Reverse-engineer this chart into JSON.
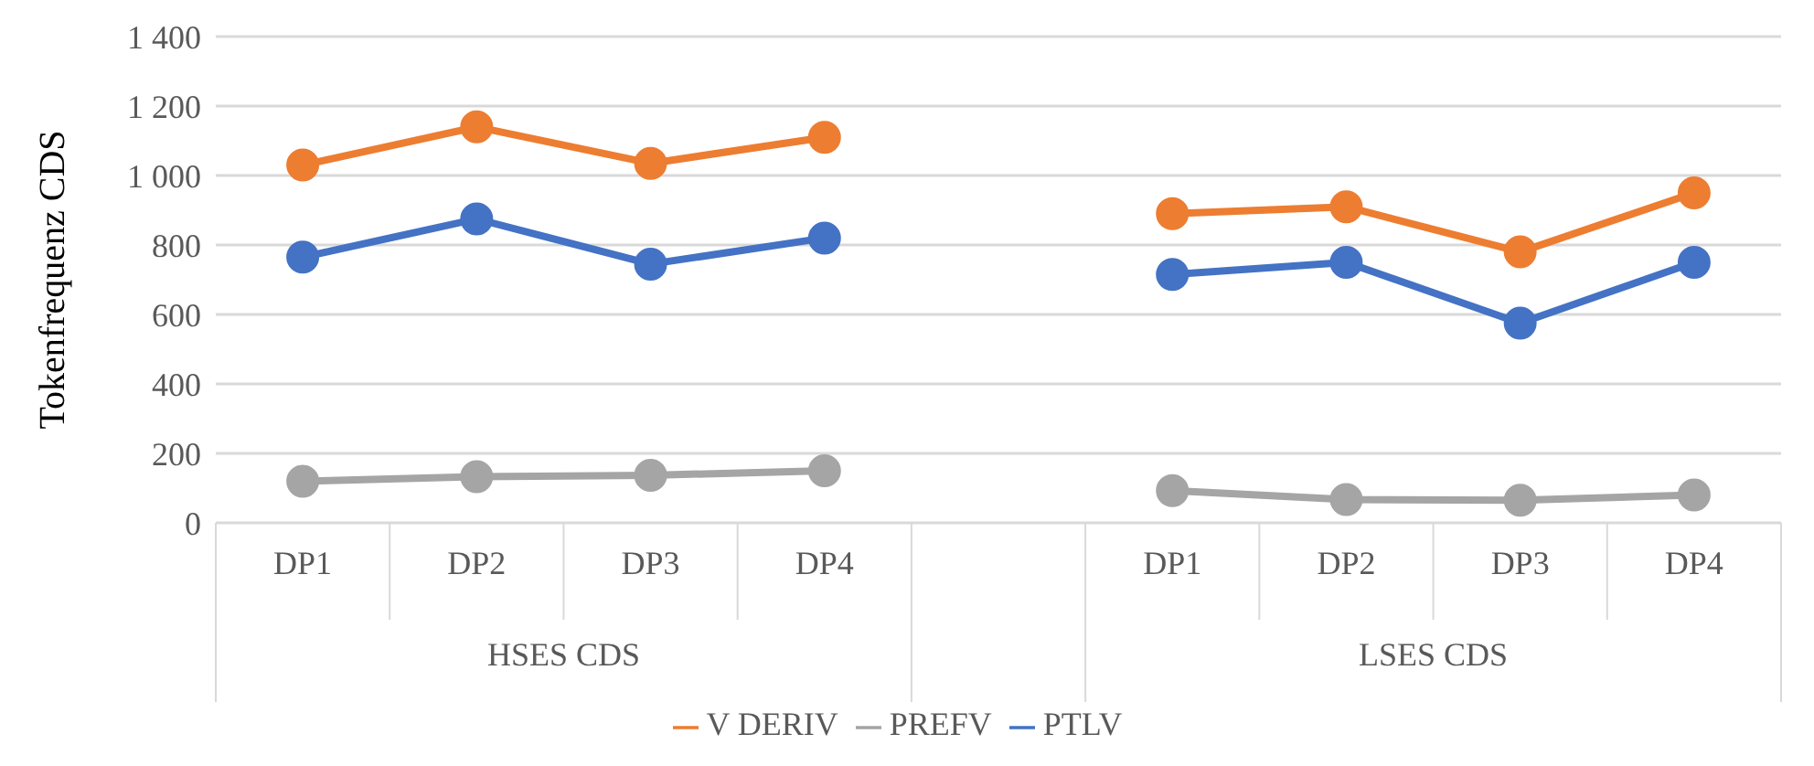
{
  "chart_data": {
    "type": "line",
    "ylabel": "Tokenfrequenz CDS",
    "categories": [
      "DP1",
      "DP2",
      "DP3",
      "DP4",
      null,
      "DP1",
      "DP2",
      "DP3",
      "DP4"
    ],
    "annotations": [
      "HSES CDS",
      "LSES CDS"
    ],
    "series": [
      {
        "name": "V DERIV",
        "color": "#ed7d31",
        "values": [
          1030,
          1140,
          1035,
          1110,
          null,
          890,
          910,
          780,
          950
        ]
      },
      {
        "name": "PREFV",
        "color": "#a5a5a5",
        "values": [
          120,
          133,
          137,
          150,
          null,
          93,
          67,
          65,
          80
        ]
      },
      {
        "name": "PTLV",
        "color": "#4472c4",
        "values": [
          765,
          875,
          745,
          820,
          null,
          715,
          750,
          575,
          750
        ]
      }
    ],
    "ylim": [
      0,
      1400
    ],
    "yticks": [
      0,
      200,
      400,
      600,
      800,
      {
        "value": 1000,
        "label": "1 000"
      },
      {
        "value": 1200,
        "label": "1 200"
      },
      {
        "value": 1400,
        "label": "1 400"
      }
    ],
    "grid": "y",
    "legend": "bottom",
    "marker": "circle"
  }
}
